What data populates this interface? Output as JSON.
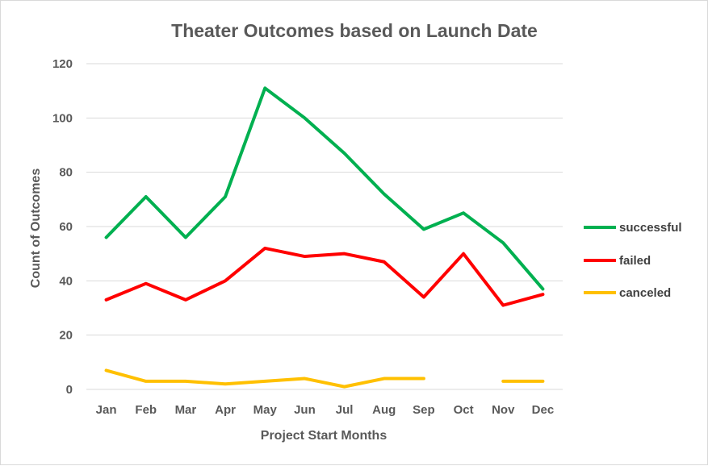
{
  "chart_data": {
    "type": "line",
    "title": "Theater Outcomes based on Launch Date",
    "xlabel": "Project Start Months",
    "ylabel": "Count of Outcomes",
    "categories": [
      "Jan",
      "Feb",
      "Mar",
      "Apr",
      "May",
      "Jun",
      "Jul",
      "Aug",
      "Sep",
      "Oct",
      "Nov",
      "Dec"
    ],
    "ylim": [
      0,
      120
    ],
    "yticks": [
      0,
      20,
      40,
      60,
      80,
      100,
      120
    ],
    "grid": true,
    "legend_position": "right",
    "series": [
      {
        "name": "successful",
        "color": "#00b050",
        "values": [
          56,
          71,
          56,
          71,
          111,
          100,
          87,
          72,
          59,
          65,
          54,
          37
        ]
      },
      {
        "name": "failed",
        "color": "#ff0000",
        "values": [
          33,
          39,
          33,
          40,
          52,
          49,
          50,
          47,
          34,
          50,
          31,
          35
        ]
      },
      {
        "name": "canceled",
        "color": "#ffc000",
        "values": [
          7,
          3,
          3,
          2,
          3,
          4,
          1,
          4,
          4,
          null,
          3,
          3
        ]
      }
    ]
  }
}
